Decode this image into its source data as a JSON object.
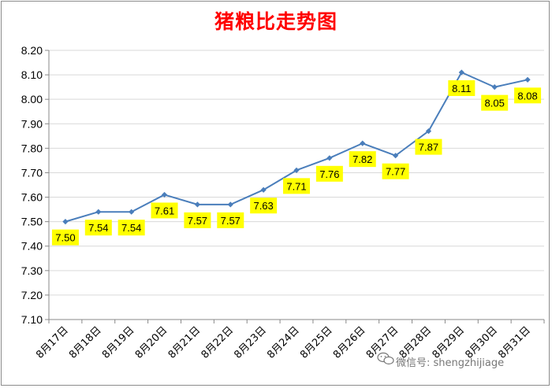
{
  "chart_data": {
    "type": "line",
    "title": "猪粮比走势图",
    "categories": [
      "8月17日",
      "8月18日",
      "8月19日",
      "8月20日",
      "8月21日",
      "8月22日",
      "8月23日",
      "8月24日",
      "8月25日",
      "8月26日",
      "8月27日",
      "8月28日",
      "8月29日",
      "8月30日",
      "8月31日"
    ],
    "values": [
      7.5,
      7.54,
      7.54,
      7.61,
      7.57,
      7.57,
      7.63,
      7.71,
      7.76,
      7.82,
      7.77,
      7.87,
      8.11,
      8.05,
      8.08
    ],
    "data_labels": [
      "7.50",
      "7.54",
      "7.54",
      "7.61",
      "7.57",
      "7.57",
      "7.63",
      "7.71",
      "7.76",
      "7.82",
      "7.77",
      "7.87",
      "8.11",
      "8.05",
      "8.08"
    ],
    "yticks": [
      "7.10",
      "7.20",
      "7.30",
      "7.40",
      "7.50",
      "7.60",
      "7.70",
      "7.80",
      "7.90",
      "8.00",
      "8.10",
      "8.20"
    ],
    "ylim": [
      7.1,
      8.2
    ],
    "ystep": 0.1,
    "xlabel": "",
    "ylabel": "",
    "grid": true,
    "legend": "none",
    "colors": {
      "line": "#4a7ebb",
      "marker": "#4a7ebb",
      "label_bg": "#ffff00",
      "title": "#ff0000",
      "grid": "#d9d9d9",
      "axis": "#888888"
    }
  },
  "watermark": {
    "text": "微信号: shengzhijiage",
    "icon": "wechat-icon"
  }
}
